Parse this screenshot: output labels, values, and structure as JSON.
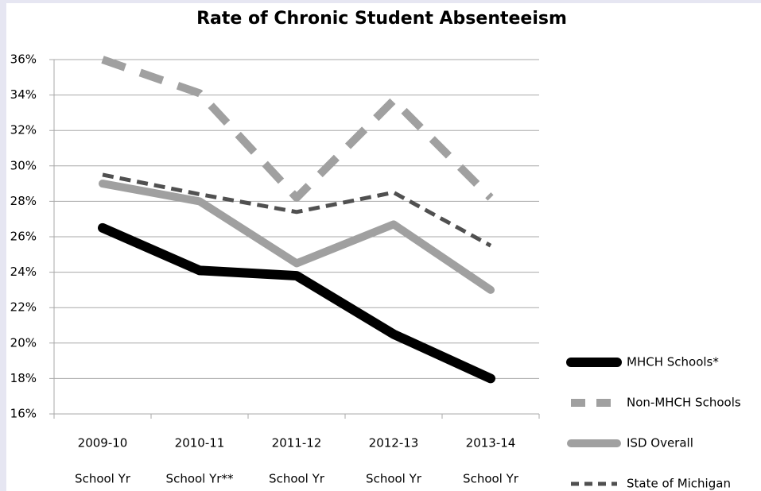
{
  "chart_data": {
    "type": "line",
    "title": "Rate of Chronic Student  Absenteeism",
    "categories": [
      [
        "2009-10",
        "School Yr"
      ],
      [
        "2010-11",
        "School Yr**"
      ],
      [
        "2011-12",
        "School Yr"
      ],
      [
        "2012-13",
        "School Yr"
      ],
      [
        "2013-14",
        "School Yr"
      ]
    ],
    "series": [
      {
        "name": "MHCH Schools*",
        "color": "#000000",
        "style": "solid",
        "values": [
          26.5,
          24.1,
          23.8,
          20.5,
          18.0
        ]
      },
      {
        "name": "Non-MHCH Schools",
        "color": "#a0a0a0",
        "style": "dashed",
        "values": [
          36.0,
          34.1,
          28.2,
          33.7,
          28.2
        ]
      },
      {
        "name": "ISD Overall",
        "color": "#a0a0a0",
        "style": "solid",
        "values": [
          29.0,
          28.0,
          24.5,
          26.7,
          23.0
        ]
      },
      {
        "name": "State of Michigan",
        "color": "#505050",
        "style": "dashed",
        "values": [
          29.5,
          28.4,
          27.4,
          28.5,
          25.5
        ]
      }
    ],
    "ylim": [
      16,
      36
    ],
    "yticks": [
      {
        "value": 16,
        "label": "16%"
      },
      {
        "value": 18,
        "label": "18%"
      },
      {
        "value": 20,
        "label": "20%"
      },
      {
        "value": 22,
        "label": "22%"
      },
      {
        "value": 24,
        "label": "24%"
      },
      {
        "value": 26,
        "label": "26%"
      },
      {
        "value": 28,
        "label": "28%"
      },
      {
        "value": 30,
        "label": "30%"
      },
      {
        "value": 32,
        "label": "32%"
      },
      {
        "value": 34,
        "label": "34%"
      },
      {
        "value": 36,
        "label": "36%"
      }
    ],
    "grid": true,
    "legend": "right"
  }
}
